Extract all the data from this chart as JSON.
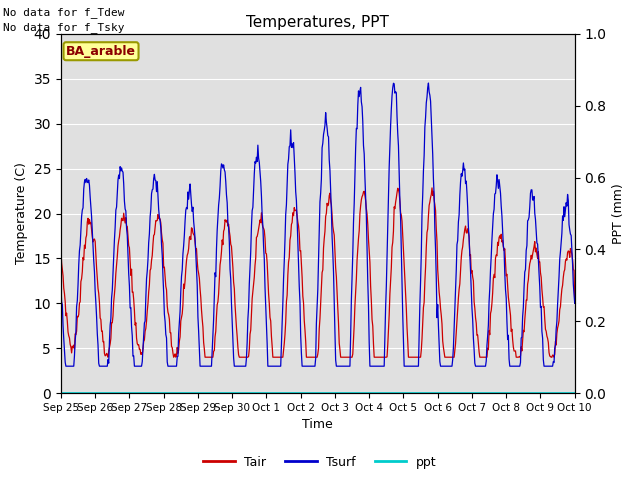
{
  "title": "Temperatures, PPT",
  "xlabel": "Time",
  "ylabel_left": "Temperature (C)",
  "ylabel_right": "PPT (mm)",
  "ylim_left": [
    0,
    40
  ],
  "ylim_right": [
    0.0,
    1.0
  ],
  "yticks_left": [
    0,
    5,
    10,
    15,
    20,
    25,
    30,
    35,
    40
  ],
  "yticks_right": [
    0.0,
    0.2,
    0.4,
    0.6,
    0.8,
    1.0
  ],
  "no_data_text": [
    "No data for f_Tdew",
    "No data for f_Tsky"
  ],
  "ba_arable_label": "BA_arable",
  "legend_labels": [
    "Tair",
    "Tsurf",
    "ppt"
  ],
  "tair_color": "#cc0000",
  "tsurf_color": "#0000cc",
  "ppt_color": "#00cccc",
  "bg_color": "#e0e0e0",
  "tick_labels": [
    "Sep 25",
    "Sep 26",
    "Sep 27",
    "Sep 28",
    "Sep 29",
    "Sep 30",
    "Oct 1",
    "Oct 2",
    "Oct 3",
    "Oct 4",
    "Oct 5",
    "Oct 6",
    "Oct 7",
    "Oct 8",
    "Oct 9",
    "Oct 10"
  ]
}
